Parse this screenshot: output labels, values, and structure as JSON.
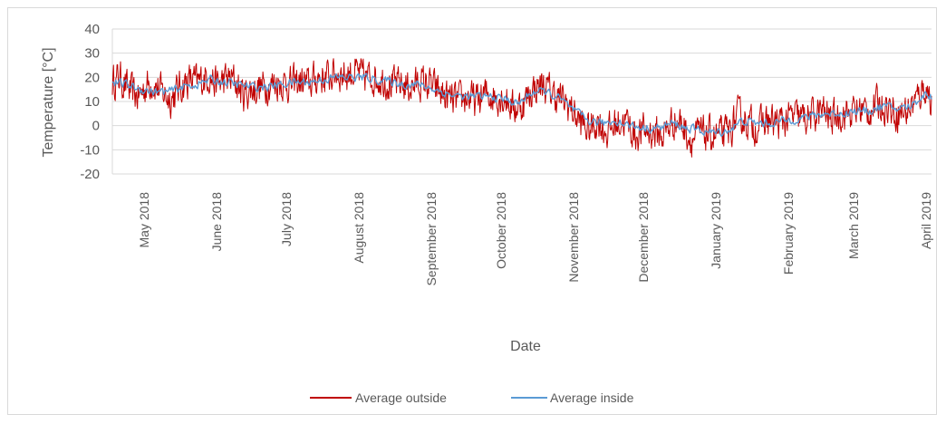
{
  "chart_data": {
    "type": "line",
    "xlabel": "Date",
    "ylabel": "Temperature [°C]",
    "ylim": [
      -20,
      40
    ],
    "yticks": [
      -20,
      -10,
      0,
      10,
      20,
      30,
      40
    ],
    "grid": "horizontal",
    "legend": "bottom",
    "x_start": "2018-04-17",
    "x_end": "2019-04-03",
    "xticks": [
      {
        "date": "2018-05-01",
        "label": "May 2018"
      },
      {
        "date": "2018-06-01",
        "label": "June 2018"
      },
      {
        "date": "2018-07-01",
        "label": "July 2018"
      },
      {
        "date": "2018-08-01",
        "label": "August 2018"
      },
      {
        "date": "2018-09-01",
        "label": "September 2018"
      },
      {
        "date": "2018-10-01",
        "label": "October 2018"
      },
      {
        "date": "2018-11-01",
        "label": "November 2018"
      },
      {
        "date": "2018-12-01",
        "label": "December 2018"
      },
      {
        "date": "2019-01-01",
        "label": "January 2019"
      },
      {
        "date": "2019-02-01",
        "label": "February 2019"
      },
      {
        "date": "2019-03-01",
        "label": "March 2019"
      },
      {
        "date": "2019-04-01",
        "label": "April 2019"
      }
    ],
    "series": [
      {
        "name": "Average outside",
        "color": "#c00000",
        "points": [
          [
            "2018-04-17",
            18
          ],
          [
            "2018-04-20",
            20
          ],
          [
            "2018-04-24",
            15
          ],
          [
            "2018-04-28",
            12
          ],
          [
            "2018-05-01",
            16
          ],
          [
            "2018-05-04",
            18
          ],
          [
            "2018-05-08",
            14
          ],
          [
            "2018-05-12",
            11
          ],
          [
            "2018-05-16",
            16
          ],
          [
            "2018-05-20",
            19
          ],
          [
            "2018-05-24",
            18
          ],
          [
            "2018-05-28",
            21
          ],
          [
            "2018-06-01",
            17
          ],
          [
            "2018-06-04",
            19
          ],
          [
            "2018-06-08",
            19
          ],
          [
            "2018-06-12",
            13
          ],
          [
            "2018-06-16",
            15
          ],
          [
            "2018-06-20",
            16
          ],
          [
            "2018-06-24",
            17
          ],
          [
            "2018-06-28",
            18
          ],
          [
            "2018-07-02",
            17
          ],
          [
            "2018-07-06",
            18
          ],
          [
            "2018-07-10",
            17
          ],
          [
            "2018-07-14",
            20
          ],
          [
            "2018-07-18",
            20
          ],
          [
            "2018-07-22",
            22
          ],
          [
            "2018-07-26",
            21
          ],
          [
            "2018-07-30",
            22
          ],
          [
            "2018-08-03",
            20
          ],
          [
            "2018-08-07",
            20
          ],
          [
            "2018-08-11",
            19
          ],
          [
            "2018-08-15",
            17
          ],
          [
            "2018-08-19",
            17
          ],
          [
            "2018-08-23",
            16
          ],
          [
            "2018-08-27",
            18
          ],
          [
            "2018-08-31",
            17
          ],
          [
            "2018-09-04",
            14
          ],
          [
            "2018-09-08",
            11
          ],
          [
            "2018-09-12",
            10
          ],
          [
            "2018-09-16",
            12
          ],
          [
            "2018-09-20",
            10
          ],
          [
            "2018-09-24",
            13
          ],
          [
            "2018-09-28",
            12
          ],
          [
            "2018-10-02",
            12
          ],
          [
            "2018-10-06",
            7
          ],
          [
            "2018-10-10",
            9
          ],
          [
            "2018-10-14",
            15
          ],
          [
            "2018-10-18",
            17
          ],
          [
            "2018-10-22",
            14
          ],
          [
            "2018-10-26",
            11
          ],
          [
            "2018-10-30",
            8
          ],
          [
            "2018-11-03",
            2
          ],
          [
            "2018-11-07",
            -2
          ],
          [
            "2018-11-11",
            2
          ],
          [
            "2018-11-15",
            -3
          ],
          [
            "2018-11-19",
            1
          ],
          [
            "2018-11-23",
            2
          ],
          [
            "2018-11-27",
            -4
          ],
          [
            "2018-12-01",
            -2
          ],
          [
            "2018-12-05",
            -3
          ],
          [
            "2018-12-09",
            -4
          ],
          [
            "2018-12-13",
            2
          ],
          [
            "2018-12-17",
            1
          ],
          [
            "2018-12-21",
            -6
          ],
          [
            "2018-12-25",
            -3
          ],
          [
            "2018-12-29",
            -4
          ],
          [
            "2019-01-02",
            -4
          ],
          [
            "2019-01-06",
            -3
          ],
          [
            "2019-01-10",
            4
          ],
          [
            "2019-01-14",
            2
          ],
          [
            "2019-01-18",
            -1
          ],
          [
            "2019-01-22",
            2
          ],
          [
            "2019-01-26",
            1
          ],
          [
            "2019-01-30",
            2
          ],
          [
            "2019-02-03",
            4
          ],
          [
            "2019-02-07",
            3
          ],
          [
            "2019-02-11",
            4
          ],
          [
            "2019-02-15",
            6
          ],
          [
            "2019-02-19",
            3
          ],
          [
            "2019-02-23",
            5
          ],
          [
            "2019-02-27",
            5
          ],
          [
            "2019-03-03",
            7
          ],
          [
            "2019-03-07",
            6
          ],
          [
            "2019-03-11",
            9
          ],
          [
            "2019-03-15",
            8
          ],
          [
            "2019-03-19",
            5
          ],
          [
            "2019-03-23",
            6
          ],
          [
            "2019-03-27",
            10
          ],
          [
            "2019-03-31",
            16
          ],
          [
            "2019-04-03",
            11
          ]
        ]
      },
      {
        "name": "Average inside",
        "color": "#5b9bd5",
        "points": [
          [
            "2018-04-17",
            18
          ],
          [
            "2018-04-23",
            17
          ],
          [
            "2018-04-29",
            15
          ],
          [
            "2018-05-05",
            14
          ],
          [
            "2018-05-11",
            14
          ],
          [
            "2018-05-17",
            16
          ],
          [
            "2018-05-23",
            17
          ],
          [
            "2018-05-29",
            19
          ],
          [
            "2018-06-04",
            18
          ],
          [
            "2018-06-10",
            17
          ],
          [
            "2018-06-16",
            16
          ],
          [
            "2018-06-22",
            16
          ],
          [
            "2018-06-28",
            17
          ],
          [
            "2018-07-04",
            18
          ],
          [
            "2018-07-10",
            18
          ],
          [
            "2018-07-16",
            19
          ],
          [
            "2018-07-22",
            20
          ],
          [
            "2018-07-28",
            20
          ],
          [
            "2018-08-03",
            20
          ],
          [
            "2018-08-09",
            19
          ],
          [
            "2018-08-15",
            18
          ],
          [
            "2018-08-21",
            17
          ],
          [
            "2018-08-27",
            17
          ],
          [
            "2018-09-02",
            15
          ],
          [
            "2018-09-08",
            13
          ],
          [
            "2018-09-14",
            12
          ],
          [
            "2018-09-20",
            12
          ],
          [
            "2018-09-26",
            12
          ],
          [
            "2018-10-02",
            11
          ],
          [
            "2018-10-08",
            9
          ],
          [
            "2018-10-14",
            14
          ],
          [
            "2018-10-20",
            14
          ],
          [
            "2018-10-26",
            11
          ],
          [
            "2018-11-01",
            6
          ],
          [
            "2018-11-07",
            2
          ],
          [
            "2018-11-13",
            1
          ],
          [
            "2018-11-19",
            2
          ],
          [
            "2018-11-25",
            0
          ],
          [
            "2018-12-01",
            -1
          ],
          [
            "2018-12-07",
            -1
          ],
          [
            "2018-12-13",
            1
          ],
          [
            "2018-12-19",
            -1
          ],
          [
            "2018-12-25",
            -2
          ],
          [
            "2018-12-31",
            -3
          ],
          [
            "2019-01-06",
            -2
          ],
          [
            "2019-01-12",
            2
          ],
          [
            "2019-01-18",
            1
          ],
          [
            "2019-01-24",
            1
          ],
          [
            "2019-01-30",
            2
          ],
          [
            "2019-02-05",
            3
          ],
          [
            "2019-02-11",
            4
          ],
          [
            "2019-02-17",
            5
          ],
          [
            "2019-02-23",
            5
          ],
          [
            "2019-03-01",
            6
          ],
          [
            "2019-03-07",
            6
          ],
          [
            "2019-03-13",
            8
          ],
          [
            "2019-03-19",
            7
          ],
          [
            "2019-03-25",
            8
          ],
          [
            "2019-03-31",
            13
          ],
          [
            "2019-04-03",
            12
          ]
        ]
      }
    ]
  }
}
